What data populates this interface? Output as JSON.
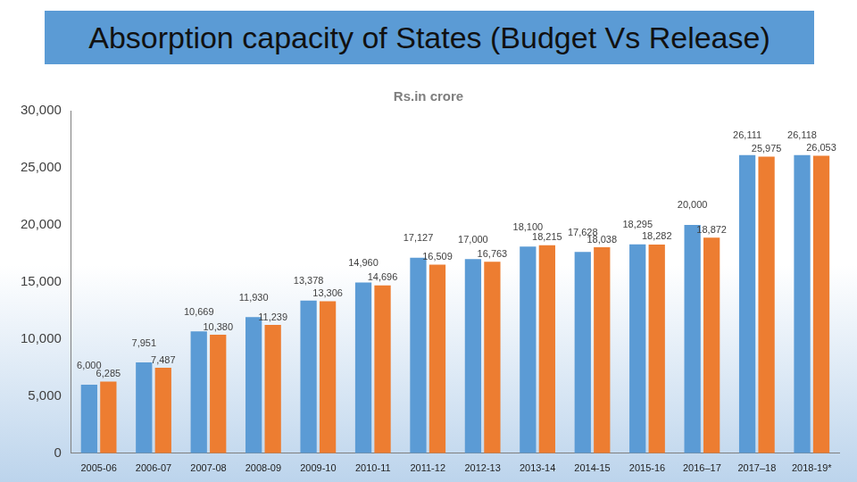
{
  "chart_data": {
    "type": "bar",
    "title": "Absorption capacity of States (Budget Vs Release)",
    "subtitle": "Rs.in crore",
    "categories": [
      "2005-06",
      "2006-07",
      "2007-08",
      "2008-09",
      "2009-10",
      "2010-11",
      "2011-12",
      "2012-13",
      "2013-14",
      "2014-15",
      "2015-16",
      "2016–17",
      "2017–18",
      "2018-19*"
    ],
    "series": [
      {
        "color": "#5b9bd5",
        "values": [
          6000,
          7951,
          10669,
          11930,
          13378,
          14960,
          17127,
          17000,
          18100,
          17628,
          18295,
          20000,
          26111,
          26118
        ],
        "value_labels": [
          "6,000",
          "7,951",
          "10,669",
          "11,930",
          "13,378",
          "14,960",
          "17,127",
          "17,000",
          "18,100",
          "17,628",
          "18,295",
          "20,000",
          "26,111",
          "26,118"
        ]
      },
      {
        "color": "#ed7d31",
        "values": [
          6285,
          7487,
          10380,
          11239,
          13306,
          14696,
          16509,
          16763,
          18215,
          18038,
          18282,
          18872,
          25975,
          26053
        ],
        "value_labels": [
          "6,285",
          "7,487",
          "10,380",
          "11,239",
          "13,306",
          "14,696",
          "16,509",
          "16,763",
          "18,215",
          "18,038",
          "18,282",
          "18,872",
          "25,975",
          "26,053"
        ]
      }
    ],
    "ylim": [
      0,
      30000
    ],
    "yticks": [
      0,
      {
        "value": 5000,
        "label": "5,000"
      },
      {
        "value": 10000,
        "label": "10,000"
      },
      {
        "value": 15000,
        "label": "15,000"
      },
      {
        "value": 20000,
        "label": "20,000"
      },
      {
        "value": 25000,
        "label": "25,000"
      },
      {
        "value": 30000,
        "label": "30,000"
      }
    ],
    "grid": false,
    "data_labels": true
  }
}
